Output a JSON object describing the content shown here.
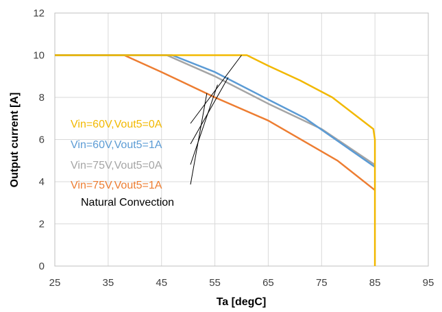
{
  "chart_data": {
    "type": "line",
    "xlabel": "Ta [degC]",
    "ylabel": "Output current [A]",
    "xlim": [
      25,
      95
    ],
    "ylim": [
      0,
      12
    ],
    "xticks": [
      "25",
      "35",
      "45",
      "55",
      "65",
      "75",
      "85",
      "95"
    ],
    "yticks": [
      "0",
      "2",
      "4",
      "6",
      "8",
      "10",
      "12"
    ],
    "grid": "vertical and horizontal major",
    "legend_placement": "inside-left",
    "series": [
      {
        "name": "Vin=60V,Vout5=0A",
        "color": "#f2b800",
        "x": [
          25,
          61,
          65,
          71,
          77,
          84.7,
          85,
          85
        ],
        "y": [
          10,
          10,
          9.5,
          8.8,
          8,
          6.5,
          6,
          0
        ]
      },
      {
        "name": "Vin=60V,Vout5=1A",
        "color": "#5b9bd5",
        "x": [
          25,
          47,
          55,
          65,
          72,
          85
        ],
        "y": [
          10,
          10,
          9.2,
          7.9,
          7,
          4.7
        ]
      },
      {
        "name": "Vin=75V,Vout5=0A",
        "color": "#a5a5a5",
        "x": [
          25,
          46,
          55,
          65,
          75,
          85
        ],
        "y": [
          10,
          10,
          9,
          7.7,
          6.5,
          4.8
        ]
      },
      {
        "name": "Vin=75V,Vout5=1A",
        "color": "#ed7d31",
        "x": [
          25,
          38,
          45,
          55,
          65,
          78,
          85
        ],
        "y": [
          10,
          10,
          9.2,
          8,
          6.9,
          5,
          3.6
        ]
      }
    ],
    "annotations": [
      "Natural Convection"
    ]
  }
}
